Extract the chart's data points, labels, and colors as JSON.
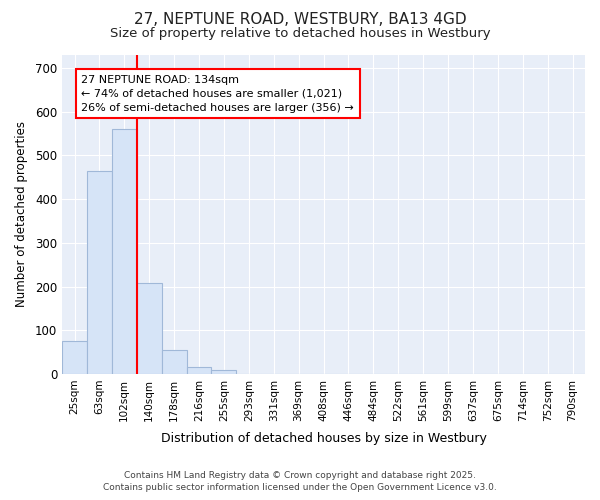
{
  "title_line1": "27, NEPTUNE ROAD, WESTBURY, BA13 4GD",
  "title_line2": "Size of property relative to detached houses in Westbury",
  "xlabel": "Distribution of detached houses by size in Westbury",
  "ylabel": "Number of detached properties",
  "categories": [
    "25sqm",
    "63sqm",
    "102sqm",
    "140sqm",
    "178sqm",
    "216sqm",
    "255sqm",
    "293sqm",
    "331sqm",
    "369sqm",
    "408sqm",
    "446sqm",
    "484sqm",
    "522sqm",
    "561sqm",
    "599sqm",
    "637sqm",
    "675sqm",
    "714sqm",
    "752sqm",
    "790sqm"
  ],
  "values": [
    75,
    465,
    560,
    207,
    55,
    15,
    8,
    0,
    0,
    0,
    0,
    0,
    0,
    0,
    0,
    0,
    0,
    0,
    0,
    0,
    0
  ],
  "bar_color": "#d6e4f7",
  "bar_edge_color": "#a0b8d8",
  "bar_edge_width": 0.8,
  "annotation_line1": "27 NEPTUNE ROAD: 134sqm",
  "annotation_line2": "← 74% of detached houses are smaller (1,021)",
  "annotation_line3": "26% of semi-detached houses are larger (356) →",
  "ylim": [
    0,
    730
  ],
  "yticks": [
    0,
    100,
    200,
    300,
    400,
    500,
    600,
    700
  ],
  "bg_color": "#ffffff",
  "plot_bg_color": "#e8eef8",
  "grid_color": "#ffffff",
  "footer_line1": "Contains HM Land Registry data © Crown copyright and database right 2025.",
  "footer_line2": "Contains public sector information licensed under the Open Government Licence v3.0."
}
